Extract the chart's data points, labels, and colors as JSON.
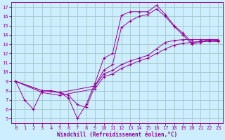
{
  "xlabel": "Windchill (Refroidissement éolien,°C)",
  "bg_color": "#cceeff",
  "grid_color": "#9bbfbf",
  "line_color": "#990099",
  "xlim": [
    -0.5,
    23.5
  ],
  "ylim": [
    4.5,
    17.5
  ],
  "xticks": [
    0,
    1,
    2,
    3,
    4,
    5,
    6,
    7,
    8,
    9,
    10,
    11,
    12,
    13,
    14,
    15,
    16,
    17,
    18,
    19,
    20,
    21,
    22,
    23
  ],
  "yticks": [
    5,
    6,
    7,
    8,
    9,
    10,
    11,
    12,
    13,
    14,
    15,
    16,
    17
  ],
  "lines": [
    {
      "x": [
        0,
        1,
        2,
        3,
        4,
        5,
        6,
        7,
        8,
        9,
        10,
        11,
        12,
        13,
        14,
        15,
        16,
        17,
        18,
        19,
        20,
        21,
        22,
        23
      ],
      "y": [
        9,
        7,
        6,
        8,
        8,
        7.8,
        7.2,
        5,
        6.5,
        8.8,
        11.5,
        12,
        16.1,
        16.5,
        16.5,
        16.5,
        17.2,
        16.2,
        15,
        14.2,
        13.2,
        13.3,
        13.5,
        13.4
      ]
    },
    {
      "x": [
        0,
        3,
        4,
        5,
        6,
        7,
        8,
        9,
        10,
        11,
        12,
        13,
        14,
        15,
        16,
        17,
        18,
        19,
        20,
        21,
        22,
        23
      ],
      "y": [
        9,
        8,
        8,
        7.8,
        7.5,
        6.5,
        6.2,
        8.5,
        10.2,
        10.8,
        14.8,
        15.5,
        16.0,
        16.2,
        16.8,
        16.0,
        14.9,
        14.0,
        13.0,
        13.2,
        13.4,
        13.3
      ]
    },
    {
      "x": [
        0,
        3,
        5,
        9,
        10,
        11,
        12,
        13,
        14,
        15,
        16,
        17,
        18,
        19,
        20,
        21,
        22,
        23
      ],
      "y": [
        9,
        8,
        7.8,
        8.5,
        9.8,
        10.2,
        10.8,
        11.2,
        11.5,
        11.8,
        12.5,
        13.2,
        13.4,
        13.5,
        13.5,
        13.5,
        13.5,
        13.5
      ]
    },
    {
      "x": [
        0,
        3,
        5,
        9,
        10,
        11,
        12,
        13,
        14,
        15,
        16,
        17,
        18,
        19,
        20,
        21,
        22,
        23
      ],
      "y": [
        9,
        7.8,
        7.5,
        8.2,
        9.5,
        9.8,
        10.4,
        10.8,
        11.2,
        11.5,
        12.0,
        12.5,
        12.9,
        13.1,
        13.2,
        13.3,
        13.3,
        13.3
      ]
    }
  ]
}
